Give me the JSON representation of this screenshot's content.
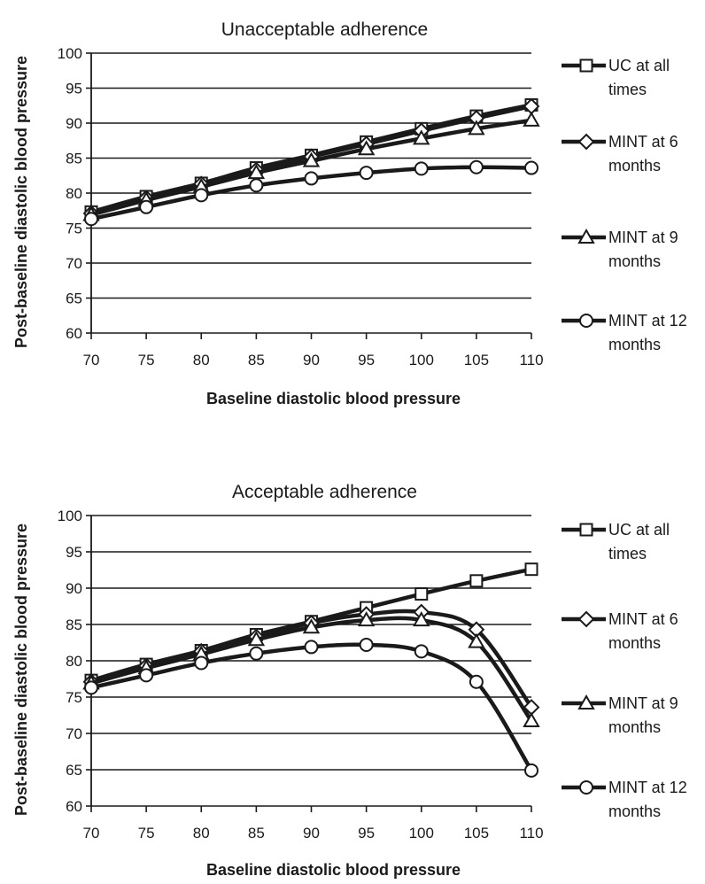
{
  "chart_data": [
    {
      "type": "line",
      "title": "Unacceptable adherence",
      "xlabel": "Baseline diastolic blood pressure",
      "ylabel": "Post-baseline diastolic blood pressure",
      "x": [
        70,
        75,
        80,
        85,
        90,
        95,
        100,
        105,
        110
      ],
      "xlim": [
        70,
        110
      ],
      "ylim": [
        60,
        100
      ],
      "yticks": [
        60,
        65,
        70,
        75,
        80,
        85,
        90,
        95,
        100
      ],
      "grid": "horizontal",
      "legend": "right",
      "series": [
        {
          "name": "UC at all times",
          "marker": "square",
          "values": [
            77.3,
            79.5,
            81.4,
            83.6,
            85.4,
            87.3,
            89.2,
            91.0,
            92.6
          ]
        },
        {
          "name": "MINT at 6 months",
          "marker": "diamond",
          "values": [
            77.1,
            79.3,
            81.3,
            83.3,
            85.2,
            87.0,
            88.9,
            90.7,
            92.4
          ]
        },
        {
          "name": "MINT at 9 months",
          "marker": "triangle",
          "values": [
            76.9,
            79.0,
            80.9,
            82.9,
            84.6,
            86.3,
            87.8,
            89.2,
            90.4
          ]
        },
        {
          "name": "MINT at 12 months",
          "marker": "circle",
          "values": [
            76.3,
            78.0,
            79.7,
            81.1,
            82.1,
            82.9,
            83.5,
            83.7,
            83.6
          ]
        }
      ]
    },
    {
      "type": "line",
      "title": "Acceptable adherence",
      "xlabel": "Baseline diastolic blood pressure",
      "ylabel": "Post-baseline diastolic blood pressure",
      "x": [
        70,
        75,
        80,
        85,
        90,
        95,
        100,
        105,
        110
      ],
      "xlim": [
        70,
        110
      ],
      "ylim": [
        60,
        100
      ],
      "yticks": [
        60,
        65,
        70,
        75,
        80,
        85,
        90,
        95,
        100
      ],
      "grid": "horizontal",
      "legend": "right",
      "series": [
        {
          "name": "UC at all times",
          "marker": "square",
          "values": [
            77.3,
            79.5,
            81.4,
            83.6,
            85.4,
            87.3,
            89.2,
            91.0,
            92.6
          ]
        },
        {
          "name": "MINT at 6 months",
          "marker": "diamond",
          "values": [
            77.1,
            79.3,
            81.3,
            83.3,
            85.2,
            86.4,
            86.7,
            84.3,
            73.6
          ]
        },
        {
          "name": "MINT at 9 months",
          "marker": "triangle",
          "values": [
            76.9,
            79.0,
            80.9,
            82.9,
            84.6,
            85.6,
            85.6,
            82.6,
            71.7
          ]
        },
        {
          "name": "MINT at 12 months",
          "marker": "circle",
          "values": [
            76.3,
            78.0,
            79.7,
            81.0,
            81.9,
            82.2,
            81.3,
            77.1,
            64.9
          ]
        }
      ]
    }
  ]
}
